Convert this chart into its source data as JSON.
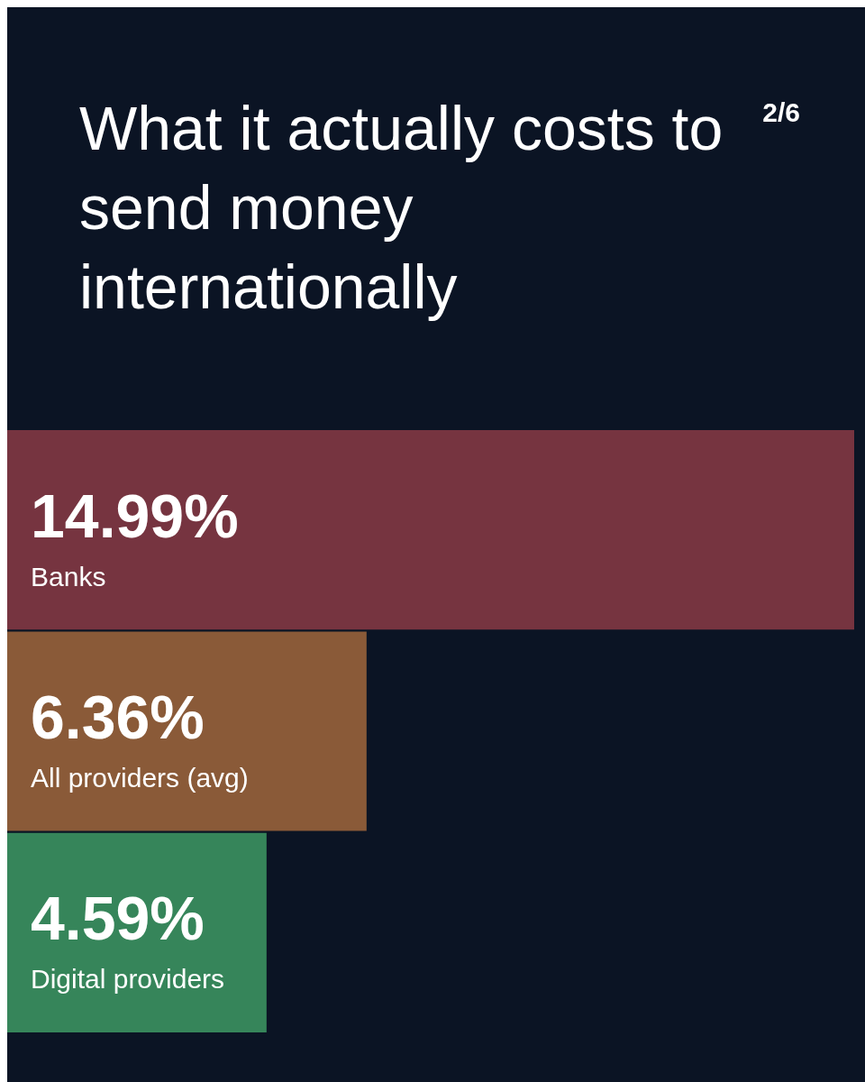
{
  "chart_data": {
    "type": "bar",
    "orientation": "horizontal",
    "title": "What it actually costs to send money internationally",
    "categories": [
      "Banks",
      "All providers (avg)",
      "Digital providers"
    ],
    "values": [
      14.99,
      6.36,
      4.59
    ],
    "value_labels": [
      "14.99%",
      "6.36%",
      "4.59%"
    ],
    "colors": [
      "#763440",
      "#8a5a38",
      "#36855a"
    ],
    "annotations": [
      "2/6"
    ],
    "legend": false,
    "tick_labels": false
  }
}
